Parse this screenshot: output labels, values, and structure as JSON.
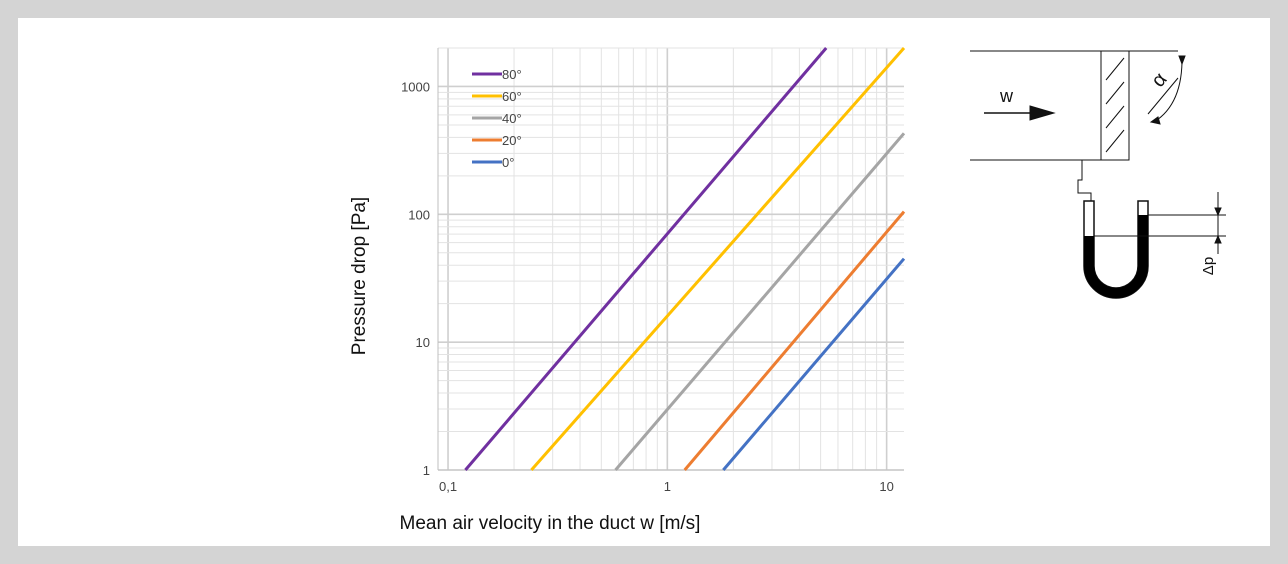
{
  "chart_data": {
    "type": "line",
    "xlabel": "Mean air velocity in the duct w [m/s]",
    "ylabel": "Pressure drop [Pa]",
    "x_scale": "log",
    "y_scale": "log",
    "xlim": [
      0.09,
      12
    ],
    "ylim": [
      1,
      2000
    ],
    "grid": true,
    "legend_position": "top-left",
    "x_ticks": [
      {
        "value": 0.1,
        "label": "0,1"
      },
      {
        "value": 1,
        "label": "1"
      },
      {
        "value": 10,
        "label": "10"
      }
    ],
    "y_ticks": [
      {
        "value": 1,
        "label": "1"
      },
      {
        "value": 10,
        "label": "10"
      },
      {
        "value": 100,
        "label": "100"
      },
      {
        "value": 1000,
        "label": "1000"
      }
    ],
    "series": [
      {
        "name": "80°",
        "color": "#7030a0",
        "x": [
          0.12,
          5.3
        ],
        "y": [
          1,
          2000
        ]
      },
      {
        "name": "60°",
        "color": "#ffc000",
        "x": [
          0.24,
          12
        ],
        "y": [
          1,
          2000
        ]
      },
      {
        "name": "40°",
        "color": "#a5a5a5",
        "x": [
          0.58,
          12
        ],
        "y": [
          1,
          430
        ]
      },
      {
        "name": "20°",
        "color": "#ed7d31",
        "x": [
          1.2,
          12
        ],
        "y": [
          1,
          105
        ]
      },
      {
        "name": "0°",
        "color": "#4472c4",
        "x": [
          1.8,
          12
        ],
        "y": [
          1,
          45
        ]
      }
    ]
  },
  "diagram": {
    "velocity_label": "w",
    "angle_label": "α",
    "pressure_label": "Δp"
  }
}
